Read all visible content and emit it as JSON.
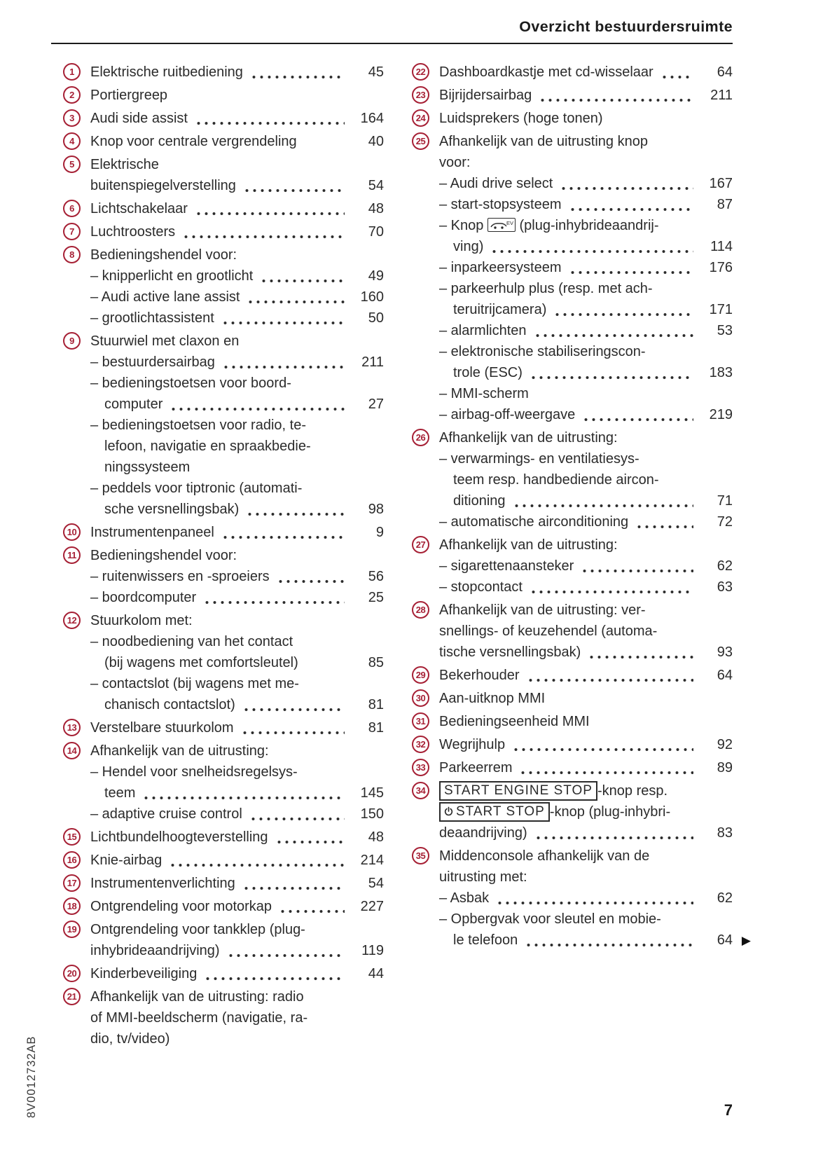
{
  "header": {
    "title": "Overzicht bestuurdersruimte"
  },
  "sidebar_code": "8V0012732AB",
  "page_number": "7",
  "colors": {
    "accent_red": "#a62035",
    "text": "#2b2b2b"
  },
  "icons": {
    "ev_button_label": "EV",
    "continuation_arrow": "▶"
  },
  "columns": {
    "left": [
      {
        "num": "1",
        "rows": [
          {
            "t": "Elektrische ruitbediening",
            "dots": true,
            "page": "45"
          }
        ]
      },
      {
        "num": "2",
        "rows": [
          {
            "t": "Portiergreep"
          }
        ]
      },
      {
        "num": "3",
        "rows": [
          {
            "t": "Audi side assist",
            "dots": true,
            "page": "164"
          }
        ]
      },
      {
        "num": "4",
        "rows": [
          {
            "t": "Knop voor centrale vergrendeling",
            "page": "40"
          }
        ]
      },
      {
        "num": "5",
        "rows": [
          {
            "t": "Elektrische"
          },
          {
            "t": "buitenspiegelverstelling",
            "dots": true,
            "page": "54"
          }
        ]
      },
      {
        "num": "6",
        "rows": [
          {
            "t": "Lichtschakelaar",
            "dots": true,
            "page": "48"
          }
        ]
      },
      {
        "num": "7",
        "rows": [
          {
            "t": "Luchtroosters",
            "dots": true,
            "page": "70"
          }
        ]
      },
      {
        "num": "8",
        "rows": [
          {
            "t": "Bedieningshendel voor:"
          },
          {
            "t": "– knipperlicht en grootlicht",
            "ind": 1,
            "dots": true,
            "page": "49"
          },
          {
            "t": "– Audi active lane assist",
            "ind": 1,
            "dots": true,
            "page": "160"
          },
          {
            "t": "– grootlichtassistent",
            "ind": 1,
            "dots": true,
            "page": "50"
          }
        ]
      },
      {
        "num": "9",
        "rows": [
          {
            "t": "Stuurwiel met claxon en"
          },
          {
            "t": "– bestuurdersairbag",
            "ind": 1,
            "dots": true,
            "page": "211"
          },
          {
            "t": "– bedieningstoetsen voor boord-",
            "ind": 1
          },
          {
            "t": "computer",
            "ind": 2,
            "dots": true,
            "page": "27"
          },
          {
            "t": "– bedieningstoetsen voor radio, te-",
            "ind": 1
          },
          {
            "t": "lefoon, navigatie en spraakbedie-",
            "ind": 2
          },
          {
            "t": "ningssysteem",
            "ind": 2
          },
          {
            "t": "– peddels voor tiptronic (automati-",
            "ind": 1
          },
          {
            "t": "sche versnellingsbak)",
            "ind": 2,
            "dots": true,
            "page": "98"
          }
        ]
      },
      {
        "num": "10",
        "rows": [
          {
            "t": "Instrumentenpaneel",
            "dots": true,
            "page": "9"
          }
        ]
      },
      {
        "num": "11",
        "rows": [
          {
            "t": "Bedieningshendel voor:"
          },
          {
            "t": "– ruitenwissers en -sproeiers",
            "ind": 1,
            "dots": true,
            "page": "56"
          },
          {
            "t": "– boordcomputer",
            "ind": 1,
            "dots": true,
            "page": "25"
          }
        ]
      },
      {
        "num": "12",
        "rows": [
          {
            "t": "Stuurkolom met:"
          },
          {
            "t": "– noodbediening van het contact",
            "ind": 1
          },
          {
            "t": "(bij wagens met comfortsleutel)",
            "ind": 2,
            "page": "85"
          },
          {
            "t": "– contactslot (bij wagens met me-",
            "ind": 1
          },
          {
            "t": "chanisch contactslot)",
            "ind": 2,
            "dots": true,
            "page": "81"
          }
        ]
      },
      {
        "num": "13",
        "rows": [
          {
            "t": "Verstelbare stuurkolom",
            "dots": true,
            "page": "81"
          }
        ]
      },
      {
        "num": "14",
        "rows": [
          {
            "t": "Afhankelijk van de uitrusting:"
          },
          {
            "t": "– Hendel voor snelheidsregelsys-",
            "ind": 1
          },
          {
            "t": "teem",
            "ind": 2,
            "dots": true,
            "page": "145"
          },
          {
            "t": "– adaptive cruise control",
            "ind": 1,
            "dots": true,
            "page": "150"
          }
        ]
      },
      {
        "num": "15",
        "rows": [
          {
            "t": "Lichtbundelhoogteverstelling",
            "dots": true,
            "page": "48"
          }
        ]
      },
      {
        "num": "16",
        "rows": [
          {
            "t": "Knie-airbag",
            "dots": true,
            "page": "214"
          }
        ]
      },
      {
        "num": "17",
        "rows": [
          {
            "t": "Instrumentenverlichting",
            "dots": true,
            "page": "54"
          }
        ]
      },
      {
        "num": "18",
        "rows": [
          {
            "t": "Ontgrendeling voor motorkap",
            "dots": true,
            "page": "227"
          }
        ]
      },
      {
        "num": "19",
        "rows": [
          {
            "t": "Ontgrendeling voor tankklep (plug-"
          },
          {
            "t": "inhybrideaandrijving)",
            "dots": true,
            "page": "119"
          }
        ]
      },
      {
        "num": "20",
        "rows": [
          {
            "t": "Kinderbeveiliging",
            "dots": true,
            "page": "44"
          }
        ]
      },
      {
        "num": "21",
        "rows": [
          {
            "t": "Afhankelijk van de uitrusting: radio"
          },
          {
            "t": "of MMI-beeldscherm (navigatie, ra-"
          },
          {
            "t": "dio, tv/video)"
          }
        ]
      }
    ],
    "right": [
      {
        "num": "22",
        "rows": [
          {
            "t": "Dashboardkastje met cd-wisselaar",
            "dots": true,
            "page": "64"
          }
        ]
      },
      {
        "num": "23",
        "rows": [
          {
            "t": "Bijrijdersairbag",
            "dots": true,
            "page": "211"
          }
        ]
      },
      {
        "num": "24",
        "rows": [
          {
            "t": "Luidsprekers (hoge tonen)"
          }
        ]
      },
      {
        "num": "25",
        "rows": [
          {
            "t": "Afhankelijk van de uitrusting knop"
          },
          {
            "t": "voor:"
          },
          {
            "t": "– Audi drive select",
            "ind": 1,
            "dots": true,
            "page": "167"
          },
          {
            "t": "– start-stopsysteem",
            "ind": 1,
            "dots": true,
            "page": "87"
          },
          {
            "parts": [
              {
                "text": "– Knop "
              },
              {
                "icon": "ev"
              },
              {
                "text": " (plug-inhybrideaandrij-"
              }
            ],
            "ind": 1
          },
          {
            "t": "ving)",
            "ind": 2,
            "dots": true,
            "page": "114"
          },
          {
            "t": "– inparkeersysteem",
            "ind": 1,
            "dots": true,
            "page": "176"
          },
          {
            "t": "– parkeerhulp plus (resp. met ach-",
            "ind": 1
          },
          {
            "t": "teruitrijcamera)",
            "ind": 2,
            "dots": true,
            "page": "171"
          },
          {
            "t": "– alarmlichten",
            "ind": 1,
            "dots": true,
            "page": "53"
          },
          {
            "t": "– elektronische stabiliseringscon-",
            "ind": 1
          },
          {
            "t": "trole (ESC)",
            "ind": 2,
            "dots": true,
            "page": "183"
          },
          {
            "t": "– MMI-scherm",
            "ind": 1
          },
          {
            "t": "– airbag-off-weergave",
            "ind": 1,
            "dots": true,
            "page": "219"
          }
        ]
      },
      {
        "num": "26",
        "rows": [
          {
            "t": "Afhankelijk van de uitrusting:"
          },
          {
            "t": "– verwarmings- en ventilatiesys-",
            "ind": 1
          },
          {
            "t": "teem resp. handbediende aircon-",
            "ind": 2
          },
          {
            "t": "ditioning",
            "ind": 2,
            "dots": true,
            "page": "71"
          },
          {
            "t": "– automatische airconditioning",
            "ind": 1,
            "dots": true,
            "page": "72"
          }
        ]
      },
      {
        "num": "27",
        "rows": [
          {
            "t": "Afhankelijk van de uitrusting:"
          },
          {
            "t": "– sigarettenaansteker",
            "ind": 1,
            "dots": true,
            "page": "62"
          },
          {
            "t": "– stopcontact",
            "ind": 1,
            "dots": true,
            "page": "63"
          }
        ]
      },
      {
        "num": "28",
        "rows": [
          {
            "t": "Afhankelijk van de uitrusting: ver-"
          },
          {
            "t": "snellings- of keuzehendel (automa-"
          },
          {
            "t": "tische versnellingsbak)",
            "dots": true,
            "page": "93"
          }
        ]
      },
      {
        "num": "29",
        "rows": [
          {
            "t": "Bekerhouder",
            "dots": true,
            "page": "64"
          }
        ]
      },
      {
        "num": "30",
        "rows": [
          {
            "t": "Aan-uitknop MMI"
          }
        ]
      },
      {
        "num": "31",
        "rows": [
          {
            "t": "Bedieningseenheid MMI"
          }
        ]
      },
      {
        "num": "32",
        "rows": [
          {
            "t": "Wegrijhulp",
            "dots": true,
            "page": "92"
          }
        ]
      },
      {
        "num": "33",
        "rows": [
          {
            "t": "Parkeerrem",
            "dots": true,
            "page": "89"
          }
        ]
      },
      {
        "num": "34",
        "rows": [
          {
            "parts": [
              {
                "box": "START ENGINE STOP"
              },
              {
                "text": "-knop resp."
              }
            ]
          },
          {
            "parts": [
              {
                "box": "START STOP",
                "box_icon": "power"
              },
              {
                "text": "-knop (plug-inhybri-"
              }
            ]
          },
          {
            "t": "deaandrijving)",
            "dots": true,
            "page": "83"
          }
        ]
      },
      {
        "num": "35",
        "rows": [
          {
            "t": "Middenconsole afhankelijk van de"
          },
          {
            "t": "uitrusting met:"
          },
          {
            "t": "– Asbak",
            "ind": 1,
            "dots": true,
            "page": "62"
          },
          {
            "t": "– Opbergvak voor sleutel en mobie-",
            "ind": 1
          },
          {
            "t": "le telefoon",
            "ind": 2,
            "dots": true,
            "page": "64",
            "arrow": true
          }
        ]
      }
    ]
  }
}
